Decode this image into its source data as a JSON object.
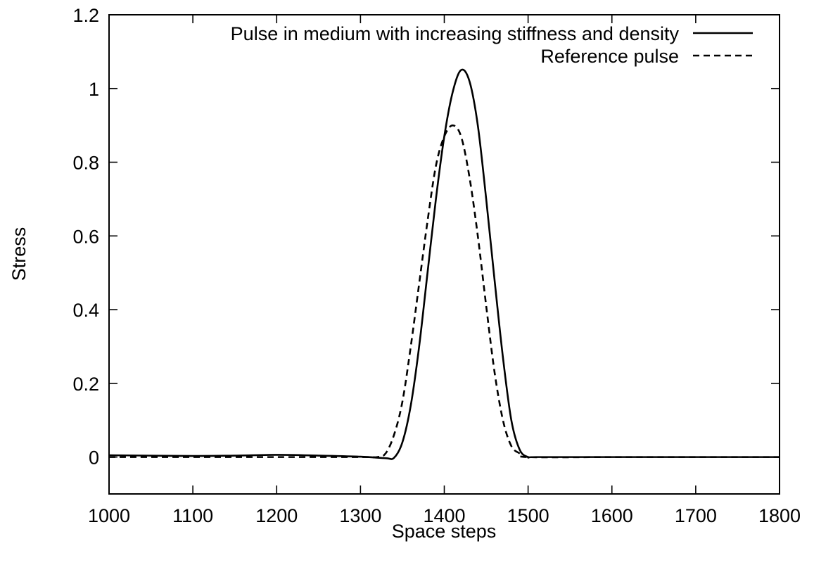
{
  "chart_data": {
    "type": "line",
    "title": "",
    "xlabel": "Space steps",
    "ylabel": "Stress",
    "xlim": [
      1000,
      1800
    ],
    "ylim": [
      -0.1,
      1.2
    ],
    "xticks": [
      1000,
      1100,
      1200,
      1300,
      1400,
      1500,
      1600,
      1700,
      1800
    ],
    "xtick_labels": [
      "1000",
      "1100",
      "1200",
      "1300",
      "1400",
      "1500",
      "1600",
      "1700",
      "1800"
    ],
    "yticks": [
      0,
      0.2,
      0.4,
      0.6,
      0.8,
      1.0,
      1.2
    ],
    "ytick_labels": [
      "0",
      "0.2",
      "0.4",
      "0.6",
      "0.8",
      "1",
      "1.2"
    ],
    "grid": false,
    "legend_position": "top-right",
    "series": [
      {
        "name": "Pulse in medium with increasing stiffness and density",
        "style": "solid",
        "color": "#000000",
        "x": [
          1000,
          1100,
          1150,
          1200,
          1250,
          1300,
          1330,
          1340,
          1350,
          1360,
          1370,
          1380,
          1390,
          1400,
          1410,
          1420,
          1430,
          1440,
          1450,
          1460,
          1470,
          1480,
          1490,
          1500,
          1510,
          1600,
          1700,
          1800
        ],
        "y": [
          0.005,
          0.003,
          0.004,
          0.006,
          0.004,
          0.001,
          -0.003,
          -0.002,
          0.04,
          0.14,
          0.3,
          0.5,
          0.7,
          0.87,
          0.99,
          1.05,
          1.02,
          0.9,
          0.7,
          0.48,
          0.27,
          0.1,
          0.02,
          0.0,
          0.0,
          0.0,
          0.0,
          0.0
        ]
      },
      {
        "name": "Reference pulse",
        "style": "dashed",
        "color": "#000000",
        "x": [
          1000,
          1100,
          1200,
          1300,
          1320,
          1330,
          1340,
          1350,
          1360,
          1370,
          1380,
          1390,
          1400,
          1410,
          1420,
          1430,
          1440,
          1450,
          1460,
          1470,
          1480,
          1490,
          1500,
          1600,
          1700,
          1800
        ],
        "y": [
          0.0,
          0.0,
          0.0,
          0.0,
          0.0,
          0.01,
          0.06,
          0.15,
          0.3,
          0.47,
          0.64,
          0.79,
          0.87,
          0.9,
          0.87,
          0.76,
          0.6,
          0.41,
          0.23,
          0.1,
          0.03,
          0.01,
          0.0,
          0.0,
          0.0,
          0.0
        ]
      }
    ]
  }
}
